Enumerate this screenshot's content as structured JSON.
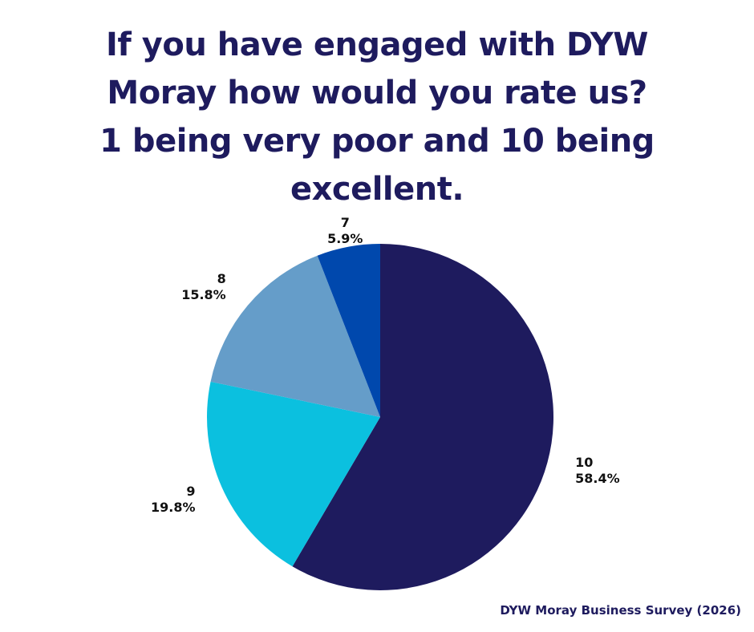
{
  "title_lines": [
    "If you have engaged with DYW",
    "Moray how would you rate us?",
    "1 being very poor and 10 being",
    "excellent."
  ],
  "source_note": "DYW Moray Business Survey (2026)",
  "chart_data": {
    "type": "pie",
    "title": "If you have engaged with DYW Moray how would you rate us? 1 being very poor and 10 being excellent.",
    "slices": [
      {
        "label": "10",
        "value": 58.4,
        "pct_label": "58.4%",
        "color": "#1e1b5e"
      },
      {
        "label": "9",
        "value": 19.8,
        "pct_label": "19.8%",
        "color": "#0bc0df"
      },
      {
        "label": "8",
        "value": 15.8,
        "pct_label": "15.8%",
        "color": "#659dc9"
      },
      {
        "label": "7",
        "value": 5.9,
        "pct_label": "5.9%",
        "color": "#0048ad"
      }
    ],
    "start_angle_deg": 0,
    "direction": "clockwise",
    "legend": "none"
  }
}
